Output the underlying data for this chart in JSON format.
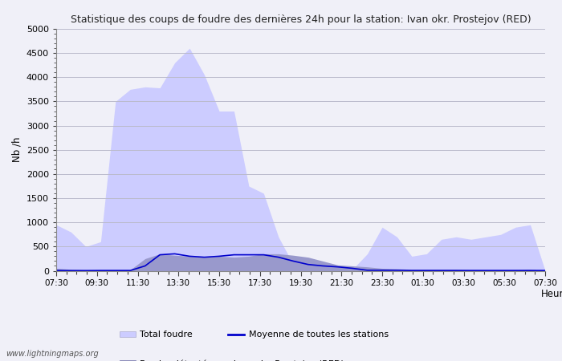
{
  "title": "Statistique des coups de foudre des dernières 24h pour la station: Ivan okr. Prostejov (RED)",
  "xlabel": "Heure",
  "ylabel": "Nb /h",
  "ylim": [
    0,
    5000
  ],
  "yticks": [
    0,
    500,
    1000,
    1500,
    2000,
    2500,
    3000,
    3500,
    4000,
    4500,
    5000
  ],
  "background_color": "#f0f0f8",
  "plot_bg_color": "#f0f0f8",
  "grid_color": "#bbbbcc",
  "watermark": "www.lightningmaps.org",
  "x_labels": [
    "07:30",
    "09:30",
    "11:30",
    "13:30",
    "15:30",
    "17:30",
    "19:30",
    "21:30",
    "23:30",
    "01:30",
    "03:30",
    "05:30",
    "07:30"
  ],
  "total_foudre_color": "#ccccff",
  "local_foudre_color": "#9999cc",
  "moyenne_color": "#0000cc",
  "total_foudre": [
    950,
    800,
    500,
    600,
    3500,
    3750,
    3800,
    3780,
    4300,
    4600,
    4050,
    3300,
    3300,
    1750,
    1600,
    700,
    130,
    120,
    80,
    50,
    30,
    350,
    900,
    700,
    300,
    350,
    650,
    700,
    650,
    700,
    750,
    900,
    950,
    0
  ],
  "local_foudre": [
    50,
    30,
    20,
    20,
    20,
    20,
    250,
    350,
    320,
    300,
    280,
    300,
    280,
    300,
    350,
    350,
    320,
    280,
    200,
    120,
    100,
    80,
    50,
    40,
    30,
    30,
    30,
    30,
    20,
    20,
    20,
    20,
    30,
    0
  ],
  "moyenne": [
    5,
    3,
    3,
    5,
    5,
    5,
    100,
    330,
    350,
    300,
    280,
    300,
    330,
    330,
    330,
    280,
    200,
    130,
    100,
    80,
    50,
    10,
    10,
    10,
    5,
    5,
    5,
    5,
    5,
    5,
    5,
    5,
    5,
    5
  ],
  "n_points": 34,
  "legend_row1": [
    "Total foudre",
    "Moyenne de toutes les stations"
  ],
  "legend_row2": [
    "Foudre détectée par Ivan okr. Prostejov (RED)"
  ]
}
